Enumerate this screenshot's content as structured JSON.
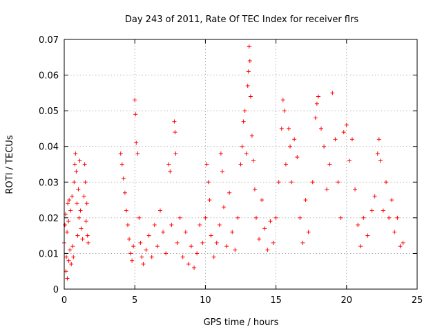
{
  "chart_data": {
    "type": "scatter",
    "title": "Day 243 of 2011, Rate Of TEC Index for receiver flrs",
    "xlabel": "GPS time / hours",
    "ylabel": "ROTI / TECUs",
    "xlim": [
      0,
      25
    ],
    "ylim": [
      0,
      0.07
    ],
    "xticks": [
      0,
      5,
      10,
      15,
      20,
      25
    ],
    "xtick_labels": [
      "0",
      "5",
      "10",
      "15",
      "20",
      "25"
    ],
    "yticks": [
      0,
      0.01,
      0.02,
      0.03,
      0.04,
      0.05,
      0.06,
      0.07
    ],
    "ytick_labels": [
      "0",
      "0.01",
      "0.02",
      "0.03",
      "0.04",
      "0.05",
      "0.06",
      "0.07"
    ],
    "grid": true,
    "marker": "+",
    "color": "#ff0000",
    "series": [
      {
        "points": [
          [
            0.0,
            0.013
          ],
          [
            0.05,
            0.018
          ],
          [
            0.1,
            0.021
          ],
          [
            0.12,
            0.005
          ],
          [
            0.15,
            0.009
          ],
          [
            0.2,
            0.016
          ],
          [
            0.22,
            0.003
          ],
          [
            0.25,
            0.024
          ],
          [
            0.3,
            0.019
          ],
          [
            0.32,
            0.008
          ],
          [
            0.35,
            0.025
          ],
          [
            0.4,
            0.011
          ],
          [
            0.45,
            0.022
          ],
          [
            0.5,
            0.007
          ],
          [
            0.55,
            0.026
          ],
          [
            0.6,
            0.012
          ],
          [
            0.65,
            0.009
          ],
          [
            0.7,
            0.03
          ],
          [
            0.75,
            0.035
          ],
          [
            0.8,
            0.038
          ],
          [
            0.85,
            0.033
          ],
          [
            0.9,
            0.024
          ],
          [
            0.95,
            0.015
          ],
          [
            1.0,
            0.028
          ],
          [
            1.05,
            0.02
          ],
          [
            1.1,
            0.036
          ],
          [
            1.15,
            0.022
          ],
          [
            1.2,
            0.017
          ],
          [
            1.3,
            0.014
          ],
          [
            1.4,
            0.026
          ],
          [
            1.45,
            0.035
          ],
          [
            1.5,
            0.03
          ],
          [
            1.55,
            0.019
          ],
          [
            1.6,
            0.024
          ],
          [
            1.65,
            0.015
          ],
          [
            1.7,
            0.013
          ],
          [
            4.0,
            0.038
          ],
          [
            4.1,
            0.035
          ],
          [
            4.2,
            0.031
          ],
          [
            4.3,
            0.027
          ],
          [
            4.4,
            0.022
          ],
          [
            4.5,
            0.018
          ],
          [
            4.6,
            0.014
          ],
          [
            4.7,
            0.01
          ],
          [
            4.8,
            0.008
          ],
          [
            4.9,
            0.012
          ],
          [
            5.0,
            0.053
          ],
          [
            5.05,
            0.049
          ],
          [
            5.1,
            0.041
          ],
          [
            5.2,
            0.038
          ],
          [
            5.3,
            0.02
          ],
          [
            5.4,
            0.013
          ],
          [
            5.5,
            0.009
          ],
          [
            5.6,
            0.007
          ],
          [
            5.8,
            0.011
          ],
          [
            6.0,
            0.015
          ],
          [
            6.2,
            0.009
          ],
          [
            6.4,
            0.018
          ],
          [
            6.6,
            0.012
          ],
          [
            6.8,
            0.022
          ],
          [
            7.0,
            0.016
          ],
          [
            7.2,
            0.01
          ],
          [
            7.4,
            0.035
          ],
          [
            7.5,
            0.033
          ],
          [
            7.6,
            0.018
          ],
          [
            7.8,
            0.047
          ],
          [
            7.85,
            0.044
          ],
          [
            7.9,
            0.038
          ],
          [
            8.0,
            0.013
          ],
          [
            8.2,
            0.02
          ],
          [
            8.4,
            0.009
          ],
          [
            8.6,
            0.016
          ],
          [
            8.8,
            0.007
          ],
          [
            9.0,
            0.012
          ],
          [
            9.2,
            0.006
          ],
          [
            9.4,
            0.01
          ],
          [
            9.6,
            0.018
          ],
          [
            9.8,
            0.013
          ],
          [
            10.0,
            0.02
          ],
          [
            10.1,
            0.035
          ],
          [
            10.2,
            0.03
          ],
          [
            10.3,
            0.025
          ],
          [
            10.4,
            0.015
          ],
          [
            10.6,
            0.009
          ],
          [
            10.8,
            0.013
          ],
          [
            11.0,
            0.018
          ],
          [
            11.1,
            0.038
          ],
          [
            11.2,
            0.033
          ],
          [
            11.3,
            0.023
          ],
          [
            11.5,
            0.012
          ],
          [
            11.7,
            0.027
          ],
          [
            11.9,
            0.016
          ],
          [
            12.1,
            0.011
          ],
          [
            12.3,
            0.02
          ],
          [
            12.5,
            0.035
          ],
          [
            12.6,
            0.04
          ],
          [
            12.7,
            0.047
          ],
          [
            12.8,
            0.05
          ],
          [
            12.9,
            0.038
          ],
          [
            13.0,
            0.057
          ],
          [
            13.05,
            0.061
          ],
          [
            13.1,
            0.068
          ],
          [
            13.15,
            0.064
          ],
          [
            13.2,
            0.054
          ],
          [
            13.3,
            0.043
          ],
          [
            13.4,
            0.036
          ],
          [
            13.5,
            0.028
          ],
          [
            13.6,
            0.02
          ],
          [
            13.8,
            0.014
          ],
          [
            14.0,
            0.025
          ],
          [
            14.2,
            0.017
          ],
          [
            14.4,
            0.011
          ],
          [
            14.6,
            0.019
          ],
          [
            14.8,
            0.013
          ],
          [
            15.0,
            0.02
          ],
          [
            15.2,
            0.03
          ],
          [
            15.4,
            0.045
          ],
          [
            15.5,
            0.053
          ],
          [
            15.6,
            0.05
          ],
          [
            15.7,
            0.035
          ],
          [
            15.9,
            0.045
          ],
          [
            16.0,
            0.04
          ],
          [
            16.1,
            0.03
          ],
          [
            16.3,
            0.042
          ],
          [
            16.5,
            0.037
          ],
          [
            16.7,
            0.02
          ],
          [
            16.9,
            0.013
          ],
          [
            17.1,
            0.025
          ],
          [
            17.3,
            0.016
          ],
          [
            17.6,
            0.03
          ],
          [
            17.8,
            0.048
          ],
          [
            17.9,
            0.052
          ],
          [
            18.0,
            0.054
          ],
          [
            18.2,
            0.045
          ],
          [
            18.4,
            0.04
          ],
          [
            18.6,
            0.028
          ],
          [
            18.8,
            0.035
          ],
          [
            19.0,
            0.055
          ],
          [
            19.2,
            0.042
          ],
          [
            19.4,
            0.03
          ],
          [
            19.6,
            0.02
          ],
          [
            19.8,
            0.044
          ],
          [
            20.0,
            0.046
          ],
          [
            20.2,
            0.036
          ],
          [
            20.4,
            0.042
          ],
          [
            20.6,
            0.028
          ],
          [
            20.8,
            0.018
          ],
          [
            21.0,
            0.012
          ],
          [
            21.2,
            0.02
          ],
          [
            21.5,
            0.015
          ],
          [
            21.8,
            0.022
          ],
          [
            22.0,
            0.026
          ],
          [
            22.2,
            0.038
          ],
          [
            22.3,
            0.042
          ],
          [
            22.4,
            0.036
          ],
          [
            22.6,
            0.022
          ],
          [
            22.8,
            0.03
          ],
          [
            23.0,
            0.02
          ],
          [
            23.2,
            0.025
          ],
          [
            23.4,
            0.016
          ],
          [
            23.6,
            0.02
          ],
          [
            23.8,
            0.012
          ],
          [
            24.0,
            0.013
          ]
        ]
      }
    ]
  }
}
